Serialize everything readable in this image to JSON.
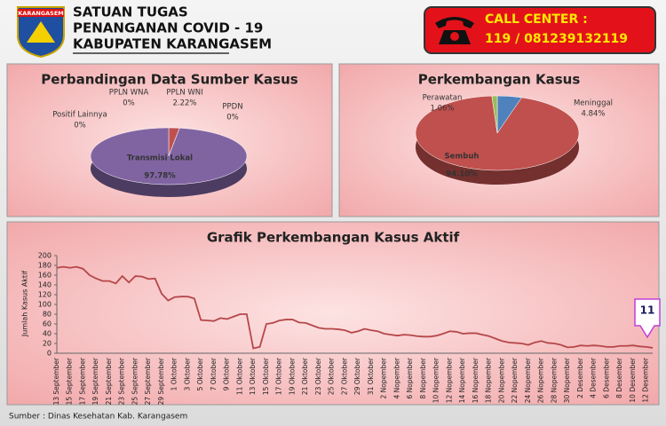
{
  "header": {
    "logo_text": "KARANGASEM",
    "title_lines": [
      "SATUAN TUGAS",
      "PENANGANAN COVID - 19",
      "KABUPATEN KARANGASEM"
    ],
    "call_center_label": "CALL CENTER :",
    "call_center_numbers": "119 / 081239132119"
  },
  "chart_data": [
    {
      "type": "pie",
      "title": "Perbandingan Data Sumber Kasus",
      "categories": [
        "PPLN WNA",
        "PPLN WNI",
        "PPDN",
        "Positif Lainnya",
        "Transmisi Lokal"
      ],
      "values": [
        0,
        2.22,
        0,
        0,
        97.78
      ],
      "value_labels": [
        "0%",
        "2.22%",
        "0%",
        "0%",
        "97.78%"
      ],
      "colors": [
        "#4f81bd",
        "#c0504d",
        "#9bbb59",
        "#f79646",
        "#8064a2"
      ]
    },
    {
      "type": "pie",
      "title": "Perkembangan Kasus",
      "categories": [
        "Meninggal",
        "Sembuh",
        "Perawatan"
      ],
      "values": [
        4.84,
        94.1,
        1.06
      ],
      "value_labels": [
        "4.84%",
        "94.10%",
        "1.06%"
      ],
      "colors": [
        "#4f81bd",
        "#c0504d",
        "#9bbb59"
      ]
    },
    {
      "type": "line",
      "title": "Grafik Perkembangan Kasus Aktif",
      "y_label": "Jumlah Kasus Aktif",
      "categories": [
        "13 September",
        null,
        "15 September",
        null,
        "17 September",
        null,
        "19 September",
        null,
        "21 September",
        null,
        "23 September",
        null,
        "25 September",
        null,
        "27 September",
        null,
        "29 September",
        null,
        "1 Oktober",
        null,
        "3 Oktober",
        null,
        "5 Oktober",
        null,
        "7 Oktober",
        null,
        "9 Oktober",
        null,
        "11 Oktober",
        null,
        "13 Oktober",
        null,
        "15 Oktober",
        null,
        "17 Oktober",
        null,
        "19 Oktober",
        null,
        "21 Oktober",
        null,
        "23 Oktober",
        null,
        "25 Oktober",
        null,
        "27 Oktober",
        null,
        "29 Oktober",
        null,
        "31 Oktober",
        null,
        "2 Nopember",
        null,
        "4 Nopember",
        null,
        "6 Nopember",
        null,
        "8 Nopember",
        null,
        "10 Nopember",
        null,
        "12 Nopember",
        null,
        "14 Nopember",
        null,
        "16 Nopember",
        null,
        "18 Nopember",
        null,
        "20 Nopember",
        null,
        "22 Nopember",
        null,
        "24 Nopember",
        null,
        "26 Nopember",
        null,
        "28 Nopember",
        null,
        "30 Nopember",
        null,
        "2 Desember",
        null,
        "4 Desember",
        null,
        "6 Desember",
        null,
        "8 Desember",
        null,
        "10 Desember",
        null,
        "12 Desember",
        null
      ],
      "series": [
        {
          "name": "Kasus Aktif",
          "color": "#b5474a",
          "values": [
            175,
            177,
            175,
            177,
            173,
            160,
            153,
            148,
            148,
            143,
            158,
            145,
            158,
            157,
            152,
            153,
            122,
            108,
            115,
            116,
            116,
            112,
            68,
            67,
            66,
            72,
            70,
            75,
            80,
            80,
            10,
            13,
            60,
            62,
            67,
            69,
            69,
            63,
            62,
            57,
            52,
            50,
            50,
            49,
            47,
            42,
            45,
            50,
            47,
            45,
            40,
            38,
            36,
            38,
            37,
            35,
            34,
            34,
            36,
            40,
            45,
            44,
            40,
            41,
            41,
            38,
            35,
            30,
            25,
            22,
            21,
            20,
            17,
            22,
            25,
            21,
            20,
            17,
            12,
            13,
            16,
            15,
            16,
            15,
            13,
            13,
            15,
            15,
            16,
            14,
            13,
            11
          ]
        }
      ],
      "annotation": 11,
      "ylim": [
        0,
        200
      ],
      "yticks": [
        0,
        20,
        40,
        60,
        80,
        100,
        120,
        140,
        160,
        180,
        200
      ],
      "grid": false
    }
  ],
  "footer": {
    "source": "Sumber : Dinas Kesehatan Kab. Karangasem"
  }
}
